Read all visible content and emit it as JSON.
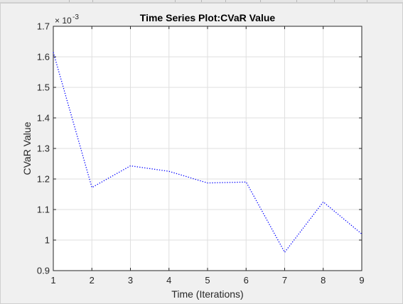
{
  "chart_data": {
    "type": "line",
    "title": "Time Series Plot:CVaR Value",
    "xlabel": "Time (Iterations)",
    "ylabel": "CVaR Value",
    "y_exponent_label": "× 10",
    "y_exponent_power": "-3",
    "xlim": [
      1,
      9
    ],
    "ylim": [
      0.9,
      1.7
    ],
    "x_ticks": [
      "1",
      "2",
      "3",
      "4",
      "5",
      "6",
      "7",
      "8",
      "9"
    ],
    "y_ticks": [
      "0.9",
      "1",
      "1.1",
      "1.2",
      "1.3",
      "1.4",
      "1.5",
      "1.6",
      "1.7"
    ],
    "grid": true,
    "series": [
      {
        "color": "#0000ff",
        "line_style": "dotted",
        "x": [
          1,
          2,
          3,
          4,
          5,
          6,
          7,
          8,
          9
        ],
        "y": [
          1.615,
          1.172,
          1.243,
          1.225,
          1.187,
          1.19,
          0.96,
          1.125,
          1.02
        ]
      }
    ]
  }
}
